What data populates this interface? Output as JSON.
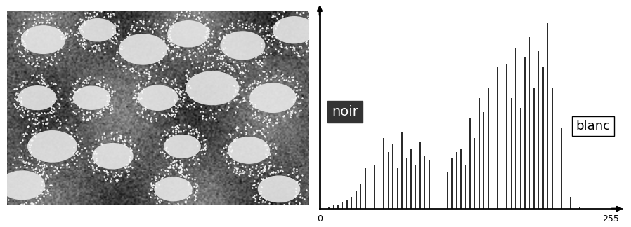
{
  "chart_data": {
    "type": "bar",
    "x": [
      8,
      12,
      16,
      20,
      24,
      28,
      32,
      36,
      40,
      44,
      48,
      52,
      56,
      60,
      64,
      68,
      72,
      76,
      80,
      84,
      88,
      92,
      96,
      100,
      104,
      108,
      112,
      116,
      120,
      124,
      128,
      132,
      136,
      140,
      144,
      148,
      152,
      156,
      160,
      164,
      168,
      172,
      176,
      180,
      184,
      188,
      192,
      196,
      200,
      204,
      208,
      212,
      216,
      220,
      224,
      228
    ],
    "values": [
      1,
      2,
      2,
      3,
      4,
      6,
      9,
      12,
      20,
      26,
      22,
      30,
      35,
      28,
      32,
      20,
      38,
      25,
      30,
      22,
      33,
      26,
      24,
      20,
      36,
      22,
      18,
      25,
      28,
      30,
      22,
      45,
      35,
      55,
      48,
      60,
      40,
      70,
      45,
      72,
      55,
      80,
      50,
      75,
      85,
      60,
      78,
      70,
      92,
      60,
      50,
      40,
      12,
      6,
      3,
      1
    ],
    "color": "#2b2b2b",
    "xlim": [
      0,
      265
    ],
    "xticks": [
      0,
      255
    ],
    "ylim": [
      0,
      100
    ],
    "tick_labels": "x",
    "annotations": [
      "noir",
      "blanc"
    ]
  }
}
